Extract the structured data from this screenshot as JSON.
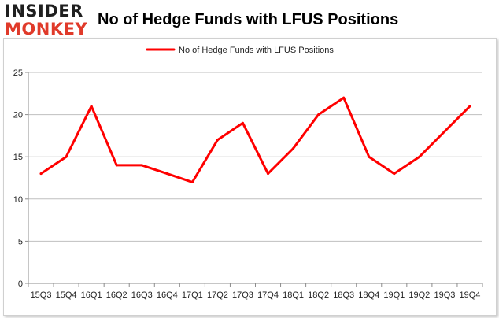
{
  "logo": {
    "line1": "INSIDER",
    "line2": "MONKEY",
    "color_dark": "#1f1f1f",
    "color_accent": "#e03a2a"
  },
  "colors": {
    "line": "#ff0000",
    "grid": "#bfbfbf",
    "axis": "#8c8c8c"
  },
  "chart_data": {
    "type": "line",
    "title": "No of Hedge Funds with LFUS Positions",
    "categories": [
      "15Q3",
      "15Q4",
      "16Q1",
      "16Q2",
      "16Q3",
      "16Q4",
      "17Q1",
      "17Q2",
      "17Q3",
      "17Q4",
      "18Q1",
      "18Q2",
      "18Q3",
      "18Q4",
      "19Q1",
      "19Q2",
      "19Q3",
      "19Q4"
    ],
    "series": [
      {
        "name": "No of Hedge Funds with LFUS Positions",
        "values": [
          13,
          15,
          21,
          14,
          14,
          13,
          12,
          17,
          19,
          13,
          16,
          20,
          22,
          15,
          13,
          15,
          18,
          21
        ]
      }
    ],
    "ylim": [
      0,
      25
    ],
    "yticks": [
      0,
      5,
      10,
      15,
      20,
      25
    ],
    "grid": true,
    "legend": "top-center"
  }
}
